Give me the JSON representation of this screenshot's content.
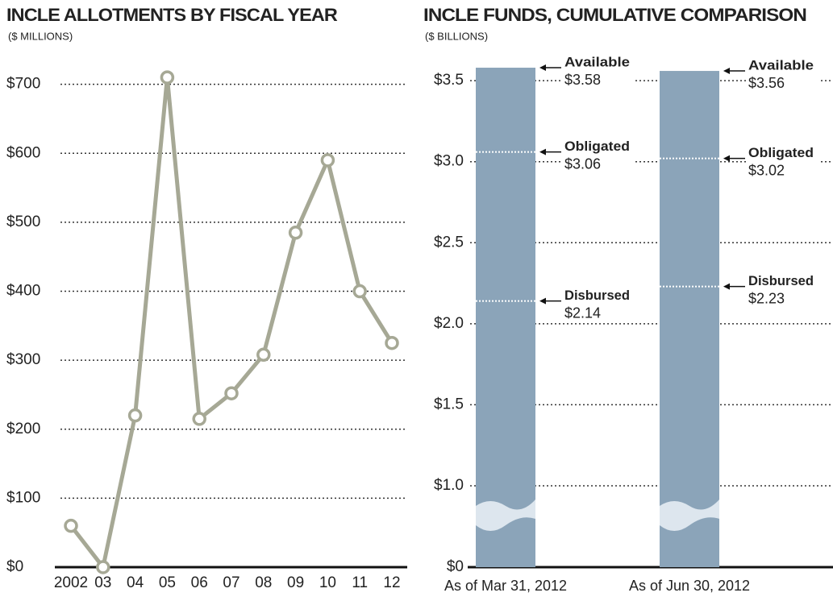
{
  "chart_data": [
    {
      "type": "line",
      "title": "INCLE ALLOTMENTS BY FISCAL YEAR",
      "subtitle": "($ MILLIONS)",
      "categories": [
        "2002",
        "03",
        "04",
        "05",
        "06",
        "07",
        "08",
        "09",
        "10",
        "11",
        "12"
      ],
      "values": [
        60,
        0,
        220,
        710,
        215,
        252,
        308,
        485,
        590,
        400,
        325
      ],
      "color": "#a6a895",
      "ylim": [
        0,
        730
      ],
      "yticks": [
        {
          "value": 0,
          "label": "$0"
        },
        {
          "value": 100,
          "label": "$100"
        },
        {
          "value": 200,
          "label": "$200"
        },
        {
          "value": 300,
          "label": "$300"
        },
        {
          "value": 400,
          "label": "$400"
        },
        {
          "value": 500,
          "label": "$500"
        },
        {
          "value": 600,
          "label": "$600"
        },
        {
          "value": 700,
          "label": "$700"
        }
      ],
      "grid": true
    },
    {
      "type": "bar",
      "title": "INCLE FUNDS, CUMULATIVE COMPARISON",
      "subtitle": "($ BILLIONS)",
      "categories": [
        "As of Mar 31, 2012",
        "As of Jun 30, 2012"
      ],
      "series": [
        {
          "name": "Available",
          "values": [
            3.58,
            3.56
          ],
          "value_labels": [
            "$3.58",
            "$3.56"
          ]
        },
        {
          "name": "Obligated",
          "values": [
            3.06,
            3.02
          ],
          "value_labels": [
            "$3.06",
            "$3.02"
          ]
        },
        {
          "name": "Disbursed",
          "values": [
            2.14,
            2.23
          ],
          "value_labels": [
            "$2.14",
            "$2.23"
          ]
        }
      ],
      "color": "#8ba4b9",
      "ylim": [
        0,
        3.6
      ],
      "axis_break": [
        0,
        1.0
      ],
      "yticks": [
        {
          "value": 0,
          "label": "$0"
        },
        {
          "value": 1.0,
          "label": "$1.0"
        },
        {
          "value": 1.5,
          "label": "$1.5"
        },
        {
          "value": 2.0,
          "label": "$2.0"
        },
        {
          "value": 2.5,
          "label": "$2.5"
        },
        {
          "value": 3.0,
          "label": "$3.0"
        },
        {
          "value": 3.5,
          "label": "$3.5"
        }
      ],
      "grid": true
    }
  ]
}
